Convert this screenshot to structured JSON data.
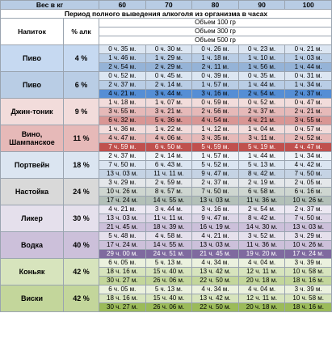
{
  "header": {
    "weight_label": "Вес в кг",
    "weights": [
      "60",
      "70",
      "80",
      "90",
      "100"
    ],
    "title": "Период полного выведения алкоголя из организма в часах",
    "drink_label": "Напиток",
    "percent_label": "% алк",
    "volumes": [
      "Объем 100 гр",
      "Объем 300 гр",
      "Объем 500 гр"
    ]
  },
  "drinks": [
    {
      "name": "Пиво",
      "percent": "4 %",
      "rows": [
        [
          "0 ч. 35 м.",
          "0 ч. 30 м.",
          "0 ч. 26 м.",
          "0 ч. 23 м.",
          "0 ч. 21 м."
        ],
        [
          "1 ч. 46 м.",
          "1 ч. 29 м.",
          "1 ч. 18 м.",
          "1 ч. 10 м.",
          "1 ч. 03 м."
        ],
        [
          "2 ч. 54 м.",
          "2 ч. 29 м.",
          "2 ч. 11 м.",
          "1 ч. 56 м.",
          "1 ч. 44 м."
        ]
      ]
    },
    {
      "name": "Пиво",
      "percent": "6 %",
      "rows": [
        [
          "0 ч. 52 м.",
          "0 ч. 45 м.",
          "0 ч. 39 м.",
          "0 ч. 35 м.",
          "0 ч. 31 м."
        ],
        [
          "2 ч. 37 м.",
          "2 ч. 14 м.",
          "1 ч. 57 м.",
          "1 ч. 44 м.",
          "1 ч. 34 м."
        ],
        [
          "4 ч. 21 м.",
          "3 ч. 44 м.",
          "3 ч. 16 м.",
          "2 ч. 54 м.",
          "2 ч. 37 м."
        ]
      ]
    },
    {
      "name": "Джин-тоник",
      "percent": "9 %",
      "rows": [
        [
          "1 ч. 18 м.",
          "1 ч. 07 м.",
          "0 ч. 59 м.",
          "0 ч. 52 м.",
          "0 ч. 47 м."
        ],
        [
          "3 ч. 55 м.",
          "3 ч. 21 м.",
          "2 ч. 56 м.",
          "2 ч. 37 м.",
          "2 ч. 21 м."
        ],
        [
          "6 ч. 32 м.",
          "5 ч. 36 м.",
          "4 ч. 54 м.",
          "4 ч. 21 м.",
          "3 ч. 55 м."
        ]
      ]
    },
    {
      "name": "Вино, Шампанское",
      "percent": "11 %",
      "rows": [
        [
          "1 ч. 36 м.",
          "1 ч. 22 м.",
          "1 ч. 12 м.",
          "1 ч. 04 м.",
          "0 ч. 57 м."
        ],
        [
          "4 ч. 47 м.",
          "4 ч. 06 м.",
          "3 ч. 35 м.",
          "3 ч. 11 м.",
          "2 ч. 52 м."
        ],
        [
          "7 ч. 59 м.",
          "6 ч. 50 м.",
          "5 ч. 59 м.",
          "5 ч. 19 м.",
          "4 ч. 47 м."
        ]
      ]
    },
    {
      "name": "Портвейн",
      "percent": "18 %",
      "rows": [
        [
          "2 ч. 37 м.",
          "2 ч. 14 м.",
          "1 ч. 57 м.",
          "1 ч. 44 м.",
          "1 ч. 34 м."
        ],
        [
          "7 ч. 50 м.",
          "6 ч. 43 м.",
          "5 ч. 52 м.",
          "5 ч. 13 м.",
          "4 ч. 42 м."
        ],
        [
          "13 ч. 03 м.",
          "11 ч. 11 м.",
          "9 ч. 47 м.",
          "8 ч. 42 м.",
          "7 ч. 50 м."
        ]
      ]
    },
    {
      "name": "Настойка",
      "percent": "24 %",
      "rows": [
        [
          "3 ч. 29 м.",
          "2 ч. 59 м.",
          "2 ч. 37 м.",
          "2 ч. 19 м.",
          "2 ч. 05 м."
        ],
        [
          "10 ч. 26 м.",
          "8 ч. 57 м.",
          "7 ч. 50 м.",
          "6 ч. 58 м.",
          "6 ч. 16 м."
        ],
        [
          "17 ч. 24 м.",
          "14 ч. 55 м.",
          "13 ч. 03 м.",
          "11 ч. 36 м.",
          "10 ч. 26 м."
        ]
      ]
    },
    {
      "name": "Ликер",
      "percent": "30 %",
      "rows": [
        [
          "4 ч. 21 м.",
          "3 ч. 44 м.",
          "3 ч. 16 м.",
          "2 ч. 54 м.",
          "2 ч. 37 м."
        ],
        [
          "13 ч. 03 м.",
          "11 ч. 11 м.",
          "9 ч. 47 м.",
          "8 ч. 42 м.",
          "7 ч. 50 м."
        ],
        [
          "21 ч. 45 м.",
          "18 ч. 39 м.",
          "16 ч. 19 м.",
          "14 ч. 30 м.",
          "13 ч. 03 м."
        ]
      ]
    },
    {
      "name": "Водка",
      "percent": "40 %",
      "rows": [
        [
          "5 ч. 48 м.",
          "4 ч. 58 м.",
          "4 ч. 21 м.",
          "3 ч. 52 м.",
          "3 ч. 29 м."
        ],
        [
          "17 ч. 24 м.",
          "14 ч. 55 м.",
          "13 ч. 03 м.",
          "11 ч. 36 м.",
          "10 ч. 26 м."
        ],
        [
          "29 ч. 00 м.",
          "24 ч. 51 м.",
          "21 ч. 45 м.",
          "19 ч. 20 м.",
          "17 ч. 24 м."
        ]
      ]
    },
    {
      "name": "Коньяк",
      "percent": "42 %",
      "rows": [
        [
          "6 ч. 05 м.",
          "5 ч. 13 м.",
          "4 ч. 34 м.",
          "4 ч. 04 м.",
          "3 ч. 39 м."
        ],
        [
          "18 ч. 16 м.",
          "15 ч. 40 м.",
          "13 ч. 42 м.",
          "12 ч. 11 м.",
          "10 ч. 58 м."
        ],
        [
          "30 ч. 27 м.",
          "26 ч. 06 м.",
          "22 ч. 50 м.",
          "20 ч. 18 м.",
          "18 ч. 16 м."
        ]
      ]
    },
    {
      "name": "Виски",
      "percent": "42 %",
      "rows": [
        [
          "6 ч. 05 м.",
          "5 ч. 13 м.",
          "4 ч. 34 м.",
          "4 ч. 04 м.",
          "3 ч. 39 м."
        ],
        [
          "18 ч. 16 м.",
          "15 ч. 40 м.",
          "13 ч. 42 м.",
          "12 ч. 11 м.",
          "10 ч. 58 м."
        ],
        [
          "30 ч. 27 м.",
          "26 ч. 06 м.",
          "22 ч. 50 м.",
          "20 ч. 18 м.",
          "18 ч. 16 м."
        ]
      ]
    }
  ]
}
